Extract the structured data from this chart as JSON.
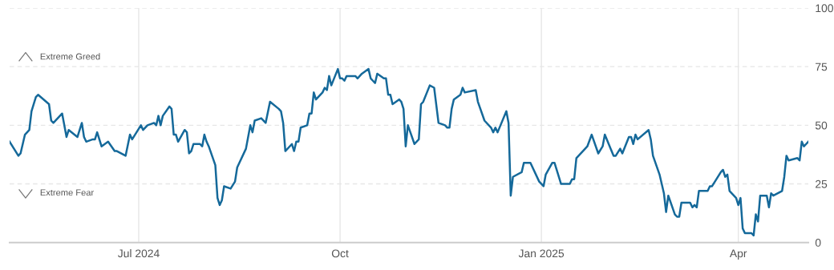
{
  "chart_data": {
    "type": "line",
    "x": [
      "2024-05-03",
      "2024-05-07",
      "2024-05-08",
      "2024-05-10",
      "2024-05-12",
      "2024-05-13",
      "2024-05-15",
      "2024-05-16",
      "2024-05-21",
      "2024-05-22",
      "2024-05-23",
      "2024-05-27",
      "2024-05-29",
      "2024-05-30",
      "2024-06-03",
      "2024-06-05",
      "2024-06-06",
      "2024-06-07",
      "2024-06-10",
      "2024-06-11",
      "2024-06-12",
      "2024-06-14",
      "2024-06-17",
      "2024-06-20",
      "2024-06-21",
      "2024-06-25",
      "2024-06-27",
      "2024-06-28",
      "2024-07-02",
      "2024-07-03",
      "2024-07-05",
      "2024-07-08",
      "2024-07-09",
      "2024-07-10",
      "2024-07-11",
      "2024-07-12",
      "2024-07-15",
      "2024-07-16",
      "2024-07-17",
      "2024-07-18",
      "2024-07-19",
      "2024-07-22",
      "2024-07-23",
      "2024-07-24",
      "2024-07-25",
      "2024-07-26",
      "2024-07-29",
      "2024-07-30",
      "2024-07-31",
      "2024-08-01",
      "2024-08-02",
      "2024-08-05",
      "2024-08-06",
      "2024-08-07",
      "2024-08-08",
      "2024-08-09",
      "2024-08-12",
      "2024-08-14",
      "2024-08-15",
      "2024-08-19",
      "2024-08-21",
      "2024-08-22",
      "2024-08-23",
      "2024-08-26",
      "2024-08-28",
      "2024-08-30",
      "2024-09-03",
      "2024-09-04",
      "2024-09-05",
      "2024-09-06",
      "2024-09-09",
      "2024-09-10",
      "2024-09-11",
      "2024-09-12",
      "2024-09-13",
      "2024-09-16",
      "2024-09-17",
      "2024-09-18",
      "2024-09-19",
      "2024-09-20",
      "2024-09-23",
      "2024-09-24",
      "2024-09-25",
      "2024-09-26",
      "2024-09-27",
      "2024-09-30",
      "2024-10-01",
      "2024-10-02",
      "2024-10-03",
      "2024-10-04",
      "2024-10-07",
      "2024-10-08",
      "2024-10-09",
      "2024-10-11",
      "2024-10-14",
      "2024-10-15",
      "2024-10-16",
      "2024-10-17",
      "2024-10-18",
      "2024-10-21",
      "2024-10-22",
      "2024-10-23",
      "2024-10-24",
      "2024-10-25",
      "2024-10-28",
      "2024-10-29",
      "2024-10-30",
      "2024-10-31",
      "2024-11-01",
      "2024-11-04",
      "2024-11-06",
      "2024-11-07",
      "2024-11-08",
      "2024-11-11",
      "2024-11-13",
      "2024-11-15",
      "2024-11-18",
      "2024-11-19",
      "2024-11-20",
      "2024-11-21",
      "2024-11-22",
      "2024-11-25",
      "2024-11-26",
      "2024-11-27",
      "2024-12-02",
      "2024-12-03",
      "2024-12-06",
      "2024-12-09",
      "2024-12-10",
      "2024-12-11",
      "2024-12-12",
      "2024-12-16",
      "2024-12-17",
      "2024-12-18",
      "2024-12-19",
      "2024-12-23",
      "2024-12-24",
      "2024-12-27",
      "2024-12-31",
      "2025-01-02",
      "2025-01-03",
      "2025-01-06",
      "2025-01-07",
      "2025-01-10",
      "2025-01-14",
      "2025-01-15",
      "2025-01-16",
      "2025-01-17",
      "2025-01-21",
      "2025-01-22",
      "2025-01-24",
      "2025-01-27",
      "2025-01-29",
      "2025-01-30",
      "2025-02-03",
      "2025-02-04",
      "2025-02-06",
      "2025-02-07",
      "2025-02-10",
      "2025-02-11",
      "2025-02-12",
      "2025-02-13",
      "2025-02-14",
      "2025-02-19",
      "2025-02-20",
      "2025-02-21",
      "2025-02-24",
      "2025-02-26",
      "2025-02-27",
      "2025-02-28",
      "2025-03-03",
      "2025-03-04",
      "2025-03-05",
      "2025-03-06",
      "2025-03-10",
      "2025-03-11",
      "2025-03-12",
      "2025-03-13",
      "2025-03-14",
      "2025-03-17",
      "2025-03-18",
      "2025-03-19",
      "2025-03-20",
      "2025-03-24",
      "2025-03-25",
      "2025-03-26",
      "2025-03-27",
      "2025-03-28",
      "2025-03-31",
      "2025-04-01",
      "2025-04-02",
      "2025-04-03",
      "2025-04-04",
      "2025-04-07",
      "2025-04-08",
      "2025-04-09",
      "2025-04-10",
      "2025-04-11",
      "2025-04-14",
      "2025-04-15",
      "2025-04-16",
      "2025-04-17",
      "2025-04-21",
      "2025-04-22",
      "2025-04-23",
      "2025-04-24",
      "2025-04-28",
      "2025-04-29",
      "2025-04-30",
      "2025-05-01",
      "2025-05-02",
      "2025-05-03"
    ],
    "series": [
      {
        "color": "#15699a",
        "values": [
          43,
          37,
          38,
          46,
          48,
          56,
          62,
          63,
          59,
          52,
          51,
          55,
          45,
          48,
          45,
          51,
          45,
          43,
          44,
          44,
          47,
          41,
          43,
          39,
          39,
          37,
          46,
          44,
          50,
          48,
          50,
          51,
          50,
          54,
          50,
          54,
          58,
          57,
          46,
          46,
          43,
          48,
          47,
          38,
          39,
          42,
          42,
          41,
          46,
          43,
          41,
          33,
          19,
          16,
          18,
          24,
          23,
          26,
          32,
          40,
          50,
          47,
          52,
          53,
          51,
          60,
          57,
          56,
          51,
          39,
          42,
          39,
          43,
          43,
          49,
          50,
          55,
          55,
          64,
          61,
          64,
          66,
          65,
          71,
          67,
          74,
          70,
          70,
          69,
          71,
          71,
          71,
          70,
          72,
          74,
          70,
          69,
          68,
          72,
          70,
          70,
          63,
          63,
          59,
          61,
          60,
          57,
          41,
          50,
          42,
          44,
          59,
          60,
          67,
          66,
          51,
          50,
          49,
          49,
          57,
          61,
          63,
          66,
          64,
          65,
          60,
          52,
          49,
          47,
          49,
          47,
          56,
          51,
          20,
          28,
          30,
          34,
          34,
          26,
          24,
          29,
          34,
          34,
          25,
          25,
          27,
          27,
          36,
          40,
          41,
          46,
          38,
          41,
          46,
          37,
          37,
          40,
          38,
          45,
          45,
          42,
          46,
          44,
          48,
          44,
          37,
          29,
          21,
          13,
          20,
          12,
          11,
          11,
          17,
          17,
          15,
          16,
          15,
          22,
          22,
          22,
          24,
          24,
          30,
          31,
          28,
          29,
          22,
          19,
          16,
          19,
          6,
          4,
          4,
          3,
          12,
          9,
          20,
          20,
          15,
          21,
          20,
          22,
          28,
          37,
          35,
          36,
          35,
          43,
          41,
          42,
          43
        ]
      }
    ],
    "xlim": [
      "2024-05-03",
      "2025-05-03"
    ],
    "xticks": [
      {
        "value": "2024-07-01",
        "label": "Jul 2024"
      },
      {
        "value": "2024-10-01",
        "label": "Oct"
      },
      {
        "value": "2025-01-01",
        "label": "Jan 2025"
      },
      {
        "value": "2025-04-01",
        "label": "Apr"
      }
    ],
    "ylim": [
      0,
      100
    ],
    "yticks": [
      0,
      25,
      50,
      75,
      100
    ],
    "grid": true,
    "marker": "none",
    "line_style": "solid",
    "annotations": [
      "Extreme Greed",
      "Extreme Fear"
    ]
  }
}
